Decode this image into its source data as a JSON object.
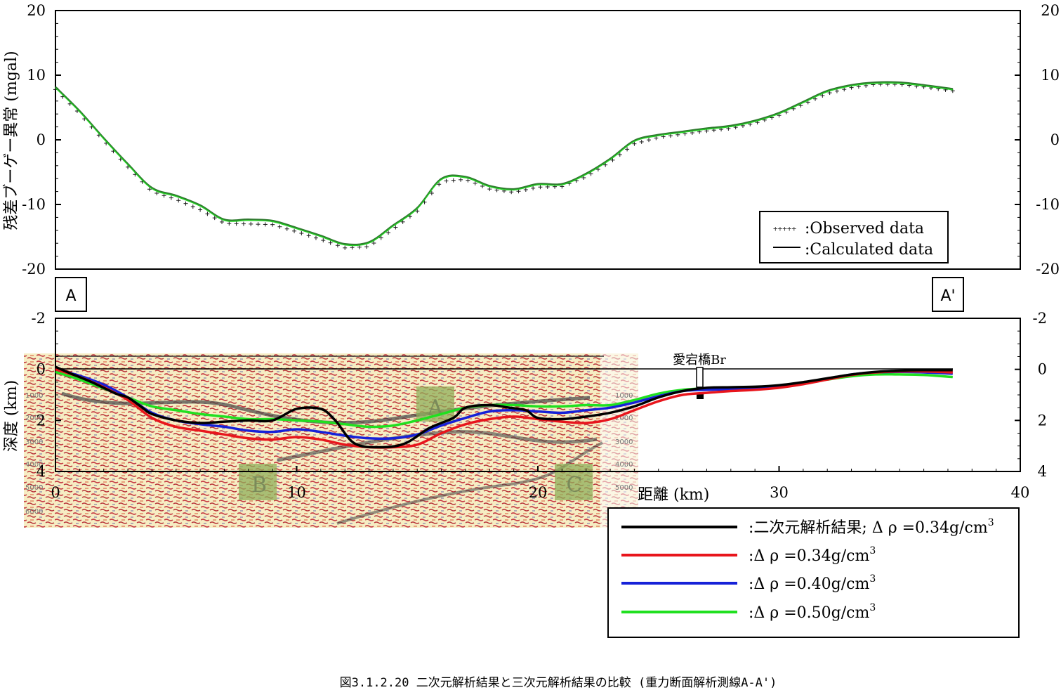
{
  "figure": {
    "caption": "図3.1.2.20 二次元解析結果と三次元解析結果の比較 (重力断面解析測線A-A')"
  },
  "colors": {
    "observed": "#1a1a1a",
    "calculated": "#2f7a2f",
    "calculated_overlay": "#22d022",
    "black": "#000000",
    "red": "#e8151c",
    "blue": "#1621d8",
    "green": "#20e020",
    "seismic_red": "#c8323a",
    "seismic_yellow": "#f4e89a"
  },
  "chart_data": [
    {
      "type": "line",
      "ylabel": "残差ブーゲー異常 (mgal)",
      "xlim": [
        0,
        40
      ],
      "ylim": [
        -20,
        20
      ],
      "yticks": [
        "20",
        "10",
        "0",
        "-10",
        "-20"
      ],
      "legend": {
        "placement": "bottom-right",
        "entries": [
          {
            "marker": "+++++",
            "label": ":Observed data"
          },
          {
            "marker": "line",
            "label": ":Calculated data"
          }
        ]
      },
      "series": [
        {
          "name": "Calculated data",
          "x": [
            0,
            1,
            2,
            3,
            4,
            5,
            6,
            7,
            8,
            9,
            10,
            11,
            12,
            13,
            14,
            15,
            16,
            17,
            18,
            19,
            20,
            21,
            22,
            23,
            24,
            25,
            26,
            27,
            28,
            29,
            30,
            31,
            32,
            33,
            34,
            35,
            36,
            37.2
          ],
          "values": [
            8.2,
            4.5,
            0.3,
            -3.7,
            -7.4,
            -8.6,
            -10.1,
            -12.3,
            -12.3,
            -12.5,
            -13.6,
            -14.8,
            -16.1,
            -15.8,
            -13.2,
            -10.5,
            -6.0,
            -5.7,
            -7.1,
            -7.6,
            -6.8,
            -6.8,
            -5.2,
            -2.9,
            -0.1,
            0.8,
            1.3,
            1.8,
            2.2,
            3.0,
            4.2,
            5.9,
            7.6,
            8.5,
            8.9,
            8.9,
            8.5,
            7.9
          ]
        },
        {
          "name": "Observed data",
          "x": [
            0,
            1,
            2,
            3,
            4,
            5,
            6,
            7,
            8,
            9,
            10,
            11,
            12,
            13,
            14,
            15,
            16,
            17,
            18,
            19,
            20,
            21,
            22,
            23,
            24,
            25,
            26,
            27,
            28,
            29,
            30,
            31,
            32,
            33,
            34,
            35,
            36,
            37.2
          ],
          "values": [
            8.0,
            4.3,
            0.1,
            -4.0,
            -7.8,
            -9.0,
            -10.6,
            -12.7,
            -12.8,
            -12.9,
            -14.0,
            -15.2,
            -16.5,
            -16.3,
            -13.6,
            -10.8,
            -6.2,
            -5.9,
            -7.4,
            -7.9,
            -7.1,
            -7.0,
            -5.5,
            -3.2,
            -0.4,
            0.6,
            1.1,
            1.6,
            2.0,
            2.8,
            4.0,
            5.7,
            7.4,
            8.3,
            8.8,
            8.8,
            8.4,
            7.8
          ]
        }
      ]
    },
    {
      "type": "line",
      "ylabel": "深度 (km)",
      "xlabel": "距離 (km)",
      "xlim": [
        0,
        40
      ],
      "ylim": [
        -2,
        4
      ],
      "xticks": [
        "0",
        "10",
        "20",
        "30",
        "40"
      ],
      "yticks": [
        "-2",
        "0",
        "2",
        "4"
      ],
      "section_labels": {
        "start": "A",
        "end": "A'"
      },
      "annotation": "愛宕橋Br",
      "annotation_x": 26.8,
      "seismic_depth_labels": [
        "1000",
        "2000",
        "3000",
        "4000",
        "5000",
        "6000"
      ],
      "seismic_zone_labels": [
        "A",
        "B",
        "C"
      ],
      "legend": {
        "placement": "bottom-right",
        "entries": [
          {
            "label": ":二次元解析結果; Δ ρ =0.34g/cm",
            "sup": "3"
          },
          {
            "label": ":Δ ρ =0.34g/cm",
            "sup": "3"
          },
          {
            "label": ":Δ ρ =0.40g/cm",
            "sup": "3"
          },
          {
            "label": ":Δ ρ =0.50g/cm",
            "sup": "3"
          }
        ]
      },
      "series": [
        {
          "x": [
            0,
            0.6,
            1.5,
            2.5,
            3.0,
            3.6,
            4.0,
            5.0,
            6.0,
            7.0,
            8.0,
            9.0,
            10.0,
            11.0,
            11.6,
            12.4,
            13.5,
            14.5,
            15.5,
            16.5,
            17.0,
            18.0,
            18.8,
            19.5,
            20.0,
            21.0,
            22.0,
            23.0,
            24.0,
            25.0,
            26.0,
            27.0,
            28.0,
            29.0,
            30.0,
            31.0,
            32.0,
            33.0,
            34.0,
            35.0,
            36.0,
            37.2
          ],
          "values": [
            -0.1,
            0.15,
            0.5,
            0.95,
            1.1,
            1.5,
            1.75,
            2.0,
            2.1,
            2.05,
            2.0,
            2.0,
            1.55,
            1.55,
            2.0,
            2.9,
            3.05,
            2.9,
            2.3,
            1.9,
            1.5,
            1.4,
            1.5,
            1.6,
            1.9,
            1.95,
            1.85,
            1.7,
            1.45,
            1.1,
            0.85,
            0.72,
            0.7,
            0.68,
            0.62,
            0.5,
            0.35,
            0.2,
            0.1,
            0.05,
            0.03,
            0.03
          ]
        },
        {
          "x": [
            0,
            1,
            2,
            3,
            4,
            5,
            6,
            7,
            8,
            9,
            10,
            11,
            12,
            13,
            14,
            15,
            16,
            17,
            18,
            19,
            20,
            21,
            22,
            23,
            24,
            25,
            26,
            27,
            28,
            29,
            30,
            31,
            32,
            33,
            34,
            35,
            36,
            37.2
          ],
          "values": [
            0.0,
            0.3,
            0.7,
            1.2,
            1.9,
            2.25,
            2.4,
            2.55,
            2.7,
            2.75,
            2.65,
            2.75,
            2.95,
            3.05,
            3.05,
            2.95,
            2.5,
            2.15,
            1.95,
            1.85,
            1.95,
            2.05,
            2.1,
            1.95,
            1.6,
            1.25,
            1.0,
            0.92,
            0.85,
            0.8,
            0.72,
            0.58,
            0.4,
            0.22,
            0.12,
            0.08,
            0.08,
            0.12
          ]
        },
        {
          "x": [
            0,
            1,
            2,
            3,
            4,
            5,
            6,
            7,
            8,
            9,
            10,
            11,
            12,
            13,
            14,
            15,
            16,
            17,
            18,
            19,
            20,
            21,
            22,
            23,
            24,
            25,
            26,
            27,
            28,
            29,
            30,
            31,
            32,
            33,
            34,
            35,
            36,
            37.2
          ],
          "values": [
            0.0,
            0.25,
            0.6,
            1.1,
            1.7,
            2.0,
            2.15,
            2.25,
            2.4,
            2.45,
            2.35,
            2.45,
            2.6,
            2.7,
            2.7,
            2.55,
            2.2,
            1.9,
            1.65,
            1.6,
            1.65,
            1.7,
            1.6,
            1.5,
            1.3,
            1.05,
            0.85,
            0.8,
            0.78,
            0.75,
            0.68,
            0.55,
            0.38,
            0.2,
            0.12,
            0.1,
            0.12,
            0.17
          ]
        },
        {
          "x": [
            0,
            1,
            2,
            3,
            4,
            5,
            6,
            7,
            8,
            9,
            10,
            11,
            12,
            13,
            14,
            15,
            16,
            17,
            18,
            19,
            20,
            21,
            22,
            23,
            24,
            25,
            26,
            27,
            28,
            29,
            30,
            31,
            32,
            33,
            34,
            35,
            36,
            37.2
          ],
          "values": [
            0.1,
            0.4,
            0.75,
            1.1,
            1.45,
            1.6,
            1.75,
            1.85,
            1.95,
            1.95,
            2.0,
            2.05,
            2.15,
            2.25,
            2.2,
            2.0,
            1.75,
            1.5,
            1.4,
            1.4,
            1.45,
            1.45,
            1.4,
            1.4,
            1.2,
            0.95,
            0.8,
            0.75,
            0.75,
            0.72,
            0.66,
            0.55,
            0.4,
            0.27,
            0.2,
            0.2,
            0.22,
            0.3
          ]
        }
      ]
    }
  ]
}
